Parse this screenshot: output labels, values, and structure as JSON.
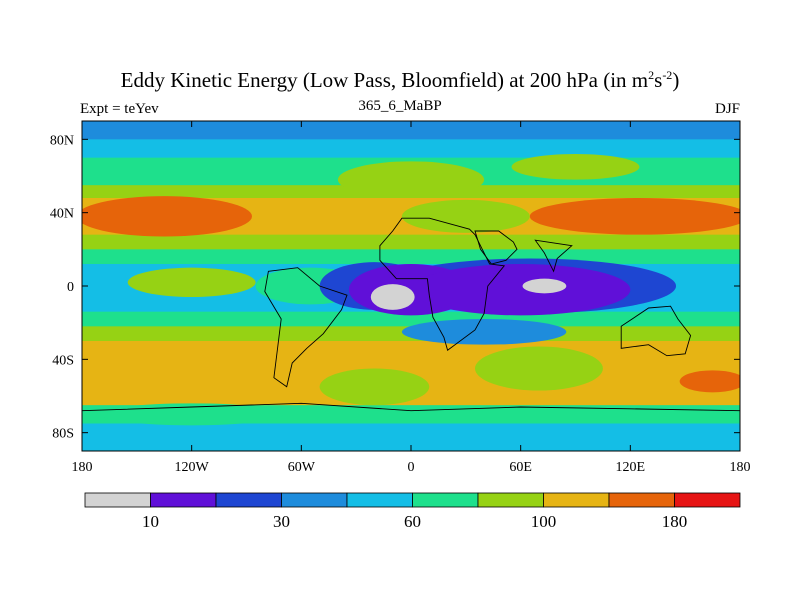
{
  "chart_data": {
    "type": "heatmap",
    "title_main": "Eddy Kinetic Energy (Low Pass, Bloomfield) at 200 hPa (in m",
    "title_sup1": "2",
    "title_mid": "s",
    "title_sup2": "-2",
    "title_end": ")",
    "left_string": "Expt = teYev",
    "center_string": "365_6_MaBP",
    "right_string": "DJF",
    "xlim": [
      -180,
      180
    ],
    "ylim": [
      -90,
      90
    ],
    "x_ticks": [
      {
        "value": -180,
        "label": "180"
      },
      {
        "value": -120,
        "label": "120W"
      },
      {
        "value": -60,
        "label": "60W"
      },
      {
        "value": 0,
        "label": "0"
      },
      {
        "value": 60,
        "label": "60E"
      },
      {
        "value": 120,
        "label": "120E"
      },
      {
        "value": 180,
        "label": "180"
      }
    ],
    "y_ticks": [
      {
        "value": 80,
        "label": "80N"
      },
      {
        "value": 40,
        "label": "40N"
      },
      {
        "value": 0,
        "label": "0"
      },
      {
        "value": -40,
        "label": "40S"
      },
      {
        "value": -80,
        "label": "80S"
      }
    ],
    "colorbar": {
      "colors": [
        "#d3d3d3",
        "#6010d8",
        "#1e46d2",
        "#1e8cdc",
        "#14bee6",
        "#1ee08c",
        "#96d214",
        "#e6b414",
        "#e6640a",
        "#e61414"
      ],
      "boundaries": [
        5,
        10,
        20,
        30,
        45,
        60,
        80,
        100,
        130,
        180
      ],
      "labels": [
        {
          "boundary_index": 1,
          "label": "10"
        },
        {
          "boundary_index": 3,
          "label": "30"
        },
        {
          "boundary_index": 5,
          "label": "60"
        },
        {
          "boundary_index": 7,
          "label": "100"
        },
        {
          "boundary_index": 9,
          "label": "180"
        }
      ]
    },
    "bands": [
      {
        "name": "band-polar-north",
        "lat_top": 90,
        "lat_bottom": 80,
        "level": 3
      },
      {
        "name": "band-north-high",
        "lat_top": 80,
        "lat_bottom": 70,
        "level": 4
      },
      {
        "name": "band-north-mid",
        "lat_top": 70,
        "lat_bottom": 55,
        "level": 5
      },
      {
        "name": "band-north-subtrop",
        "lat_top": 55,
        "lat_bottom": 48,
        "level": 6
      },
      {
        "name": "band-north-jet-edge",
        "lat_top": 48,
        "lat_bottom": 28,
        "level": 7
      },
      {
        "name": "band-north-transition",
        "lat_top": 28,
        "lat_bottom": 20,
        "level": 6
      },
      {
        "name": "band-north-tropics",
        "lat_top": 20,
        "lat_bottom": 12,
        "level": 5
      },
      {
        "name": "band-equatorial",
        "lat_top": 12,
        "lat_bottom": -14,
        "level": 4
      },
      {
        "name": "band-south-tropics",
        "lat_top": -14,
        "lat_bottom": -22,
        "level": 5
      },
      {
        "name": "band-south-subtrop",
        "lat_top": -22,
        "lat_bottom": -30,
        "level": 6
      },
      {
        "name": "band-south-mid",
        "lat_top": -30,
        "lat_bottom": -65,
        "level": 7
      },
      {
        "name": "band-south-high",
        "lat_top": -65,
        "lat_bottom": -75,
        "level": 5
      },
      {
        "name": "band-south-polar",
        "lat_top": -75,
        "lat_bottom": -90,
        "level": 4
      }
    ],
    "blobs": [
      {
        "name": "north-jet-west",
        "lon": -135,
        "lat": 38,
        "rlon": 48,
        "rlat": 11,
        "level": 8
      },
      {
        "name": "north-jet-east",
        "lon": 125,
        "lat": 38,
        "rlon": 60,
        "rlat": 10,
        "level": 8
      },
      {
        "name": "north-jet-gap",
        "lon": 30,
        "lat": 38,
        "rlon": 35,
        "rlat": 9,
        "level": 6
      },
      {
        "name": "north-green-central",
        "lon": 0,
        "lat": 58,
        "rlon": 40,
        "rlat": 10,
        "level": 6
      },
      {
        "name": "north-green-east",
        "lon": 90,
        "lat": 65,
        "rlon": 35,
        "rlat": 7,
        "level": 6
      },
      {
        "name": "equatorial-west-warm",
        "lon": -120,
        "lat": 2,
        "rlon": 35,
        "rlat": 8,
        "level": 6
      },
      {
        "name": "equatorial-teal",
        "lon": -55,
        "lat": 0,
        "rlon": 30,
        "rlat": 10,
        "level": 5
      },
      {
        "name": "equatorial-mid-blue",
        "lon": -20,
        "lat": 0,
        "rlon": 30,
        "rlat": 13,
        "level": 2
      },
      {
        "name": "equatorial-blue-east",
        "lon": 65,
        "lat": 0,
        "rlon": 80,
        "rlat": 15,
        "level": 2
      },
      {
        "name": "equatorial-min-west",
        "lon": 0,
        "lat": -2,
        "rlon": 34,
        "rlat": 14,
        "level": 1
      },
      {
        "name": "equatorial-min-east",
        "lon": 60,
        "lat": -2,
        "rlon": 60,
        "rlat": 14,
        "level": 1
      },
      {
        "name": "equatorial-min-link",
        "lon": 30,
        "lat": 2,
        "rlon": 25,
        "rlat": 6,
        "level": 1
      },
      {
        "name": "minimum-west",
        "lon": -10,
        "lat": -6,
        "rlon": 12,
        "rlat": 7,
        "level": 0
      },
      {
        "name": "minimum-east",
        "lon": 73,
        "lat": 0,
        "rlon": 12,
        "rlat": 4,
        "level": 0
      },
      {
        "name": "south-blue-tongue",
        "lon": 40,
        "lat": -25,
        "rlon": 45,
        "rlat": 7,
        "level": 3
      },
      {
        "name": "south-green-central",
        "lon": -20,
        "lat": -55,
        "rlon": 30,
        "rlat": 10,
        "level": 6
      },
      {
        "name": "south-green-east",
        "lon": 70,
        "lat": -45,
        "rlon": 35,
        "rlat": 12,
        "level": 6
      },
      {
        "name": "south-orange-east",
        "lon": 165,
        "lat": -52,
        "rlon": 18,
        "rlat": 6,
        "level": 8
      },
      {
        "name": "south-teal-west",
        "lon": -120,
        "lat": -70,
        "rlon": 50,
        "rlat": 6,
        "level": 5
      }
    ],
    "continents": [
      {
        "name": "africa",
        "points": [
          [
            -5,
            37
          ],
          [
            10,
            37
          ],
          [
            32,
            31
          ],
          [
            35,
            28
          ],
          [
            43,
            12
          ],
          [
            51,
            11
          ],
          [
            42,
            0
          ],
          [
            40,
            -15
          ],
          [
            35,
            -24
          ],
          [
            20,
            -35
          ],
          [
            18,
            -28
          ],
          [
            12,
            -17
          ],
          [
            10,
            -5
          ],
          [
            9,
            4
          ],
          [
            -8,
            4
          ],
          [
            -17,
            14
          ],
          [
            -17,
            22
          ],
          [
            -10,
            30
          ]
        ]
      },
      {
        "name": "south-america",
        "points": [
          [
            -78,
            8
          ],
          [
            -62,
            10
          ],
          [
            -50,
            0
          ],
          [
            -35,
            -5
          ],
          [
            -38,
            -13
          ],
          [
            -48,
            -26
          ],
          [
            -57,
            -34
          ],
          [
            -65,
            -42
          ],
          [
            -68,
            -55
          ],
          [
            -75,
            -50
          ],
          [
            -71,
            -18
          ],
          [
            -80,
            -3
          ]
        ]
      },
      {
        "name": "india",
        "points": [
          [
            68,
            25
          ],
          [
            88,
            22
          ],
          [
            80,
            15
          ],
          [
            78,
            8
          ],
          [
            73,
            18
          ]
        ]
      },
      {
        "name": "arabia",
        "points": [
          [
            35,
            30
          ],
          [
            48,
            30
          ],
          [
            56,
            24
          ],
          [
            58,
            20
          ],
          [
            52,
            14
          ],
          [
            44,
            12
          ],
          [
            38,
            20
          ]
        ]
      },
      {
        "name": "australia",
        "points": [
          [
            115,
            -22
          ],
          [
            130,
            -12
          ],
          [
            142,
            -11
          ],
          [
            146,
            -18
          ],
          [
            153,
            -27
          ],
          [
            150,
            -37
          ],
          [
            140,
            -38
          ],
          [
            130,
            -32
          ],
          [
            115,
            -34
          ]
        ]
      },
      {
        "name": "antarctica-edge",
        "points": [
          [
            -180,
            -68
          ],
          [
            -120,
            -66
          ],
          [
            -60,
            -64
          ],
          [
            0,
            -68
          ],
          [
            60,
            -66
          ],
          [
            120,
            -67
          ],
          [
            180,
            -68
          ],
          [
            180,
            -90
          ],
          [
            -180,
            -90
          ]
        ]
      }
    ]
  }
}
